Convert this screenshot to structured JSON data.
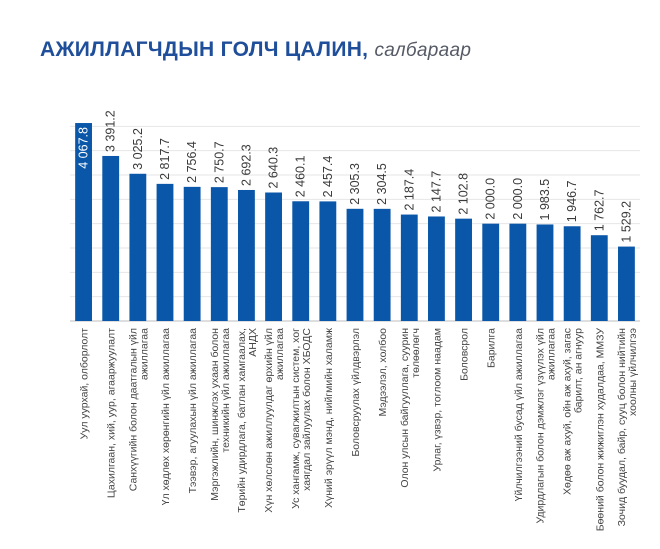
{
  "title": {
    "main": "АЖИЛЛАГЧДЫН ГОЛЧ ЦАЛИН,",
    "sub": "салбараар"
  },
  "colors": {
    "bar": "#0a56a8",
    "title": "#1f4e9a",
    "grid": "#e6e6e6",
    "axis": "#bdbdbd"
  },
  "chart_data": {
    "type": "bar",
    "title": "АЖИЛЛАГЧДЫН ГОЛЧ ЦАЛИН, салбараар",
    "ylim": [
      0,
      4500
    ],
    "grid": true,
    "categories": [
      [
        "Уул уурхай, олборлолт"
      ],
      [
        "Цахилгаан, хий, уур, агааржуулалт"
      ],
      [
        "Санхүүгийн болон даатгалын үйл",
        "ажиллагаа"
      ],
      [
        "Үл хөдлөх хөрөнгийн үйл ажиллагаа"
      ],
      [
        "Тээвэр, агуулахын үйл ажиллагаа"
      ],
      [
        "Мэргэжлийн, шинжлэх ухаан болон",
        "техникийн үйл ажиллагаа"
      ],
      [
        "Төрийн удирдлага, батлан хамгаалах,",
        "АНДХ"
      ],
      [
        "Хүн хөлслөн ажиллуулдаг өрхийн үйл",
        "ажиллагаа"
      ],
      [
        "Ус хангамж, сувагжилтын систем, хог",
        "хаягдал зайлуулах болон ХБОДС"
      ],
      [
        "Хүний эрүүл мэнд, нийгмийн халамж"
      ],
      [
        "Боловсруулах үйлдвэрлэл"
      ],
      [
        "Мэдээлэл, холбоо"
      ],
      [
        "Олон улсын байгууллага, суурин",
        "төлөөлөгч"
      ],
      [
        "Урлаг, үзвэр, тоглоом наадам"
      ],
      [
        "Боловсрол"
      ],
      [
        "Барилга"
      ],
      [
        "Үйлчилгээний бусад үйл ажиллагаа"
      ],
      [
        "Удирдлагын болон дэмжлэг үзүүлэх үйл",
        "ажиллагаа"
      ],
      [
        "Хөдөө аж ахуй, ойн аж ахуй, загас",
        "барилт, ан агнуур"
      ],
      [
        "Бөөний болон жижиглэн худалдаа, ММЗУ"
      ],
      [
        "Зочид буудал, байр, сууц болон нийтийн",
        "хоолны үйлчилгээ"
      ]
    ],
    "values": [
      4067.8,
      3391.2,
      3025.2,
      2817.7,
      2756.4,
      2750.7,
      2692.3,
      2640.3,
      2460.1,
      2457.4,
      2305.3,
      2304.5,
      2187.4,
      2147.7,
      2102.8,
      2000.0,
      2000.0,
      1983.5,
      1946.7,
      1762.7,
      1529.2
    ],
    "labels": [
      "4 067.8",
      "3 391.2",
      "3 025.2",
      "2 817.7",
      "2 756.4",
      "2 750.7",
      "2 692.3",
      "2 640.3",
      "2 460.1",
      "2 457.4",
      "2 305.3",
      "2 304.5",
      "2 187.4",
      "2 147.7",
      "2 102.8",
      "2 000.0",
      "2 000.0",
      "1 983.5",
      "1 946.7",
      "1 762.7",
      "1 529.2"
    ]
  }
}
